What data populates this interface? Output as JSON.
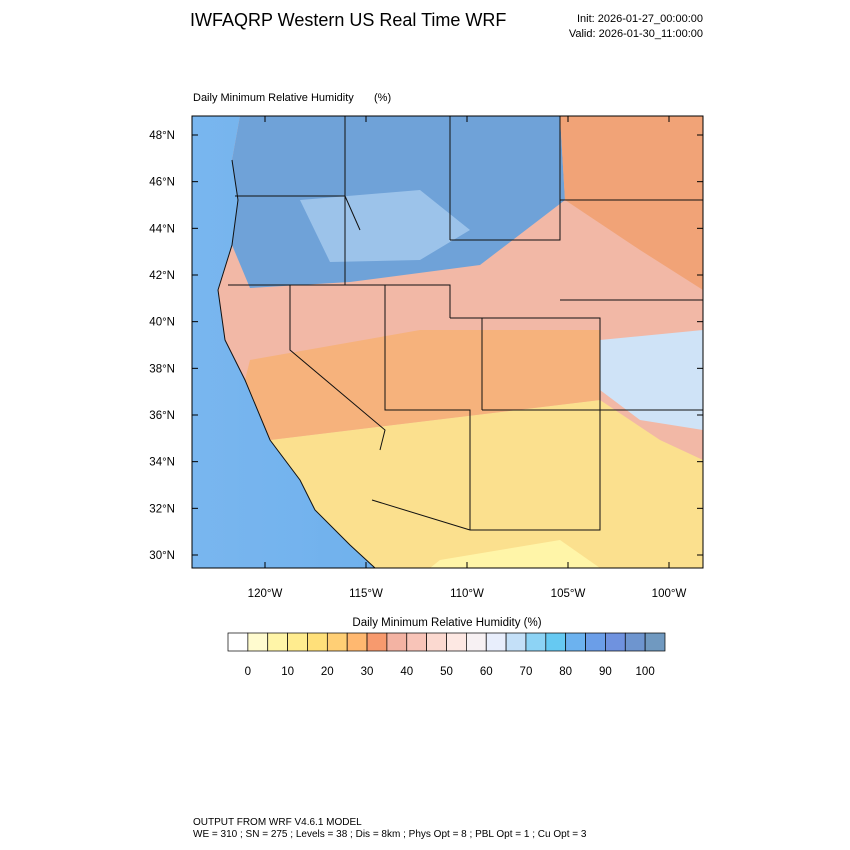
{
  "header": {
    "title": "IWFAQRP Western US Real Time WRF",
    "init": "Init: 2026-01-27_00:00:00",
    "valid": "Valid: 2026-01-30_11:00:00"
  },
  "map": {
    "label": "Daily Minimum Relative Humidity",
    "units": "(%)",
    "lat_ticks": [
      {
        "value": 48,
        "label": "48°N"
      },
      {
        "value": 46,
        "label": "46°N"
      },
      {
        "value": 44,
        "label": "44°N"
      },
      {
        "value": 42,
        "label": "42°N"
      },
      {
        "value": 40,
        "label": "40°N"
      },
      {
        "value": 38,
        "label": "38°N"
      },
      {
        "value": 36,
        "label": "36°N"
      },
      {
        "value": 34,
        "label": "34°N"
      },
      {
        "value": 32,
        "label": "32°N"
      },
      {
        "value": 30,
        "label": "30°N"
      }
    ],
    "lon_ticks": [
      {
        "value": -120,
        "label": "120°W"
      },
      {
        "value": -115,
        "label": "115°W"
      },
      {
        "value": -110,
        "label": "110°W"
      },
      {
        "value": -105,
        "label": "105°W"
      },
      {
        "value": -100,
        "label": "100°W"
      }
    ]
  },
  "colorbar": {
    "title": "Daily Minimum Relative Humidity  (%)",
    "ticks": [
      0,
      10,
      20,
      30,
      40,
      50,
      60,
      70,
      80,
      90,
      100
    ],
    "colors": [
      "#ffffff",
      "#fffbcf",
      "#fff5a8",
      "#ffec8f",
      "#ffe07a",
      "#ffcf75",
      "#ffb870",
      "#f79a6e",
      "#f3b3a3",
      "#f8c4b8",
      "#fbd9d0",
      "#fde8e3",
      "#f7f1f3",
      "#e8eefc",
      "#c4e0f8",
      "#8dd3f5",
      "#66c9f2",
      "#6cb2ef",
      "#6b9ee8",
      "#6f92df",
      "#6e95cf",
      "#7099c0"
    ]
  },
  "footer": {
    "line1": "OUTPUT FROM WRF V4.6.1 MODEL",
    "line2": "WE = 310 ; SN = 275 ; Levels = 38 ; Dis = 8km ; Phys Opt = 8 ; PBL Opt = 1 ; Cu Opt = 3"
  }
}
